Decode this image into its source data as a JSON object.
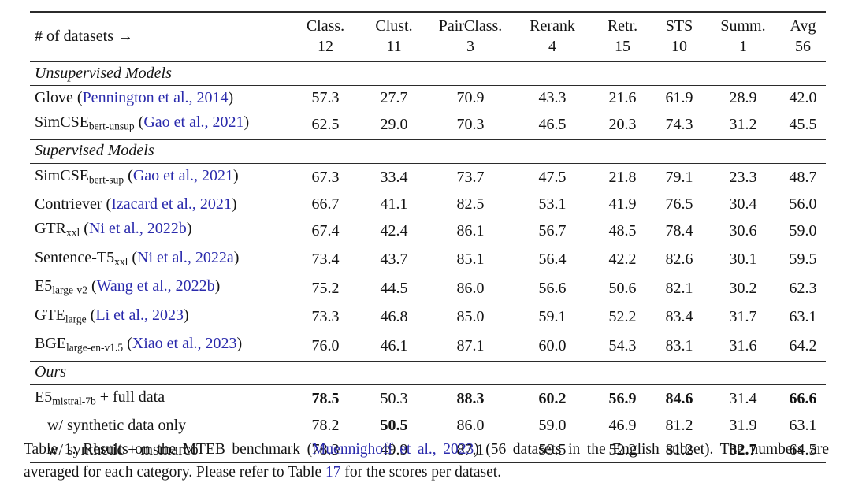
{
  "colors": {
    "link": "#2a2aac",
    "rule": "#2b2b2b",
    "text": "#141414"
  },
  "table": {
    "header": {
      "row_label": "# of datasets →",
      "columns": [
        {
          "label": "Class.",
          "count": "12"
        },
        {
          "label": "Clust.",
          "count": "11"
        },
        {
          "label": "PairClass.",
          "count": "3"
        },
        {
          "label": "Rerank",
          "count": "4"
        },
        {
          "label": "Retr.",
          "count": "15"
        },
        {
          "label": "STS",
          "count": "10"
        },
        {
          "label": "Summ.",
          "count": "1"
        },
        {
          "label": "Avg",
          "count": "56"
        }
      ]
    },
    "sections": [
      {
        "title": "Unsupervised Models",
        "rows": [
          {
            "name": "Glove",
            "sub": "",
            "cite": "Pennington et al., 2014",
            "suffix": "",
            "indent": false,
            "values": [
              "57.3",
              "27.7",
              "70.9",
              "43.3",
              "21.6",
              "61.9",
              "28.9",
              "42.0"
            ],
            "bold": [
              false,
              false,
              false,
              false,
              false,
              false,
              false,
              false
            ]
          },
          {
            "name": "SimCSE",
            "sub": "bert-unsup",
            "cite": "Gao et al., 2021",
            "suffix": "",
            "indent": false,
            "values": [
              "62.5",
              "29.0",
              "70.3",
              "46.5",
              "20.3",
              "74.3",
              "31.2",
              "45.5"
            ],
            "bold": [
              false,
              false,
              false,
              false,
              false,
              false,
              false,
              false
            ]
          }
        ]
      },
      {
        "title": "Supervised Models",
        "rows": [
          {
            "name": "SimCSE",
            "sub": "bert-sup",
            "cite": "Gao et al., 2021",
            "suffix": "",
            "indent": false,
            "values": [
              "67.3",
              "33.4",
              "73.7",
              "47.5",
              "21.8",
              "79.1",
              "23.3",
              "48.7"
            ],
            "bold": [
              false,
              false,
              false,
              false,
              false,
              false,
              false,
              false
            ]
          },
          {
            "name": "Contriever",
            "sub": "",
            "cite": "Izacard et al., 2021",
            "suffix": "",
            "indent": false,
            "values": [
              "66.7",
              "41.1",
              "82.5",
              "53.1",
              "41.9",
              "76.5",
              "30.4",
              "56.0"
            ],
            "bold": [
              false,
              false,
              false,
              false,
              false,
              false,
              false,
              false
            ]
          },
          {
            "name": "GTR",
            "sub": "xxl",
            "cite": "Ni et al., 2022b",
            "suffix": "",
            "indent": false,
            "values": [
              "67.4",
              "42.4",
              "86.1",
              "56.7",
              "48.5",
              "78.4",
              "30.6",
              "59.0"
            ],
            "bold": [
              false,
              false,
              false,
              false,
              false,
              false,
              false,
              false
            ]
          },
          {
            "name": "Sentence-T5",
            "sub": "xxl",
            "cite": "Ni et al., 2022a",
            "suffix": "",
            "indent": false,
            "values": [
              "73.4",
              "43.7",
              "85.1",
              "56.4",
              "42.2",
              "82.6",
              "30.1",
              "59.5"
            ],
            "bold": [
              false,
              false,
              false,
              false,
              false,
              false,
              false,
              false
            ]
          },
          {
            "name": "E5",
            "sub": "large-v2",
            "cite": "Wang et al., 2022b",
            "suffix": "",
            "indent": false,
            "values": [
              "75.2",
              "44.5",
              "86.0",
              "56.6",
              "50.6",
              "82.1",
              "30.2",
              "62.3"
            ],
            "bold": [
              false,
              false,
              false,
              false,
              false,
              false,
              false,
              false
            ]
          },
          {
            "name": "GTE",
            "sub": "large",
            "cite": "Li et al., 2023",
            "suffix": "",
            "indent": false,
            "values": [
              "73.3",
              "46.8",
              "85.0",
              "59.1",
              "52.2",
              "83.4",
              "31.7",
              "63.1"
            ],
            "bold": [
              false,
              false,
              false,
              false,
              false,
              false,
              false,
              false
            ]
          },
          {
            "name": "BGE",
            "sub": "large-en-v1.5",
            "cite": "Xiao et al., 2023",
            "suffix": "",
            "indent": false,
            "values": [
              "76.0",
              "46.1",
              "87.1",
              "60.0",
              "54.3",
              "83.1",
              "31.6",
              "64.2"
            ],
            "bold": [
              false,
              false,
              false,
              false,
              false,
              false,
              false,
              false
            ]
          }
        ]
      },
      {
        "title": "Ours",
        "rows": [
          {
            "name": "E5",
            "sub": "mistral-7b",
            "cite": "",
            "suffix": " + full data",
            "indent": false,
            "values": [
              "78.5",
              "50.3",
              "88.3",
              "60.2",
              "56.9",
              "84.6",
              "31.4",
              "66.6"
            ],
            "bold": [
              true,
              false,
              true,
              true,
              true,
              true,
              false,
              true
            ]
          },
          {
            "name": "w/ synthetic data only",
            "sub": "",
            "cite": "",
            "suffix": "",
            "indent": true,
            "values": [
              "78.2",
              "50.5",
              "86.0",
              "59.0",
              "46.9",
              "81.2",
              "31.9",
              "63.1"
            ],
            "bold": [
              false,
              true,
              false,
              false,
              false,
              false,
              false,
              false
            ]
          },
          {
            "name": "w/ synthetic + msmarco",
            "sub": "",
            "cite": "",
            "suffix": "",
            "indent": true,
            "values": [
              "78.3",
              "49.9",
              "87.1",
              "59.5",
              "52.2",
              "81.2",
              "32.7",
              "64.5"
            ],
            "bold": [
              false,
              false,
              false,
              false,
              false,
              false,
              true,
              false
            ]
          }
        ]
      }
    ]
  },
  "caption": {
    "segments": [
      {
        "text": "Table 1: Results on the MTEB benchmark (",
        "link": false
      },
      {
        "text": "Muennighoff et al., 2023",
        "link": true
      },
      {
        "text": ") (56 datasets in the English subset). The numbers are averaged for each category. Please refer to Table ",
        "link": false
      },
      {
        "text": "17",
        "link": true
      },
      {
        "text": " for the scores per dataset.",
        "link": false
      }
    ]
  }
}
